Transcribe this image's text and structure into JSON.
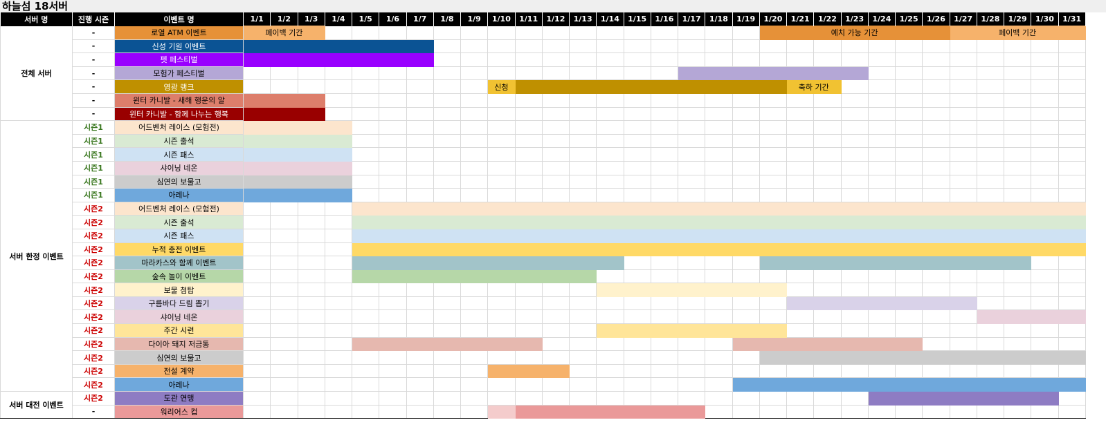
{
  "title": "하늘섬 18서버",
  "header": {
    "server": "서버 명",
    "season": "진행 시즌",
    "event": "이벤트 명"
  },
  "days": [
    "1/1",
    "1/2",
    "1/3",
    "1/4",
    "1/5",
    "1/6",
    "1/7",
    "1/8",
    "1/9",
    "1/10",
    "1/11",
    "1/12",
    "1/13",
    "1/14",
    "1/15",
    "1/16",
    "1/17",
    "1/18",
    "1/19",
    "1/20",
    "1/21",
    "1/22",
    "1/23",
    "1/24",
    "1/25",
    "1/26",
    "1/27",
    "1/28",
    "1/29",
    "1/30",
    "1/31"
  ],
  "season_colors": {
    "-": "#000000",
    "시즌1": "#38761d",
    "시즌2": "#cc0000"
  },
  "groups": [
    {
      "name": "전체 서버",
      "rows": [
        {
          "season": "-",
          "event": "로열 ATM 이벤트",
          "color": "#e69138",
          "text": "#000000",
          "segments": [
            {
              "start": 1,
              "end": 3,
              "color": "#f6b26b",
              "label": "페이백 기간"
            },
            {
              "start": 20,
              "end": 26,
              "color": "#e69138",
              "label": "예치 가능 기간"
            },
            {
              "start": 27,
              "end": 31,
              "color": "#f6b26b",
              "label": "페이백 기간"
            }
          ]
        },
        {
          "season": "-",
          "event": "신성 기원 이벤트",
          "color": "#0b5394",
          "text": "#ffffff",
          "segments": [
            {
              "start": 1,
              "end": 7,
              "color": "#0b5394"
            }
          ]
        },
        {
          "season": "-",
          "event": "펫 페스티벌",
          "color": "#9900ff",
          "text": "#ffffff",
          "segments": [
            {
              "start": 1,
              "end": 7,
              "color": "#9900ff"
            }
          ]
        },
        {
          "season": "-",
          "event": "모험가 페스티벌",
          "color": "#b4a7d6",
          "text": "#000000",
          "segments": [
            {
              "start": 17,
              "end": 23,
              "color": "#b4a7d6"
            }
          ]
        },
        {
          "season": "-",
          "event": "영광 랭크",
          "color": "#bf9000",
          "text": "#ffffff",
          "segments": [
            {
              "start": 10,
              "end": 10,
              "color": "#f1c232",
              "label": "신청"
            },
            {
              "start": 11,
              "end": 20,
              "color": "#bf9000"
            },
            {
              "start": 21,
              "end": 22,
              "color": "#f1c232",
              "label": "축하 기간"
            }
          ]
        },
        {
          "season": "-",
          "event": "윈터 카니발 - 새해 행운의 알",
          "color": "#dd7e6b",
          "text": "#000000",
          "segments": [
            {
              "start": 1,
              "end": 3,
              "color": "#dd7e6b"
            }
          ]
        },
        {
          "season": "-",
          "event": "윈터 카니발 - 함께 나누는 행복",
          "color": "#990000",
          "text": "#ffffff",
          "segments": [
            {
              "start": 1,
              "end": 3,
              "color": "#990000"
            }
          ]
        }
      ]
    },
    {
      "name": "서버 한정 이벤트",
      "rows": [
        {
          "season": "시즌1",
          "event": "어드벤처 레이스 (모험전)",
          "color": "#fce5cd",
          "text": "#000000",
          "segments": [
            {
              "start": 1,
              "end": 4,
              "color": "#fce5cd"
            }
          ]
        },
        {
          "season": "시즌1",
          "event": "시즌 출석",
          "color": "#d9ead3",
          "text": "#000000",
          "segments": [
            {
              "start": 1,
              "end": 4,
              "color": "#d9ead3"
            }
          ]
        },
        {
          "season": "시즌1",
          "event": "시즌 패스",
          "color": "#cfe2f3",
          "text": "#000000",
          "segments": [
            {
              "start": 1,
              "end": 4,
              "color": "#cfe2f3"
            }
          ]
        },
        {
          "season": "시즌1",
          "event": "샤이닝 네온",
          "color": "#ead1dc",
          "text": "#000000",
          "segments": [
            {
              "start": 1,
              "end": 4,
              "color": "#ead1dc"
            }
          ]
        },
        {
          "season": "시즌1",
          "event": "심연의 보물고",
          "color": "#cccccc",
          "text": "#000000",
          "segments": [
            {
              "start": 1,
              "end": 4,
              "color": "#cccccc"
            }
          ]
        },
        {
          "season": "시즌1",
          "event": "아레나",
          "color": "#6fa8dc",
          "text": "#000000",
          "segments": [
            {
              "start": 1,
              "end": 4,
              "color": "#6fa8dc"
            }
          ]
        },
        {
          "season": "시즌2",
          "event": "어드벤처 레이스 (모험전)",
          "color": "#fce5cd",
          "text": "#000000",
          "segments": [
            {
              "start": 5,
              "end": 31,
              "color": "#fce5cd"
            }
          ]
        },
        {
          "season": "시즌2",
          "event": "시즌 출석",
          "color": "#d9ead3",
          "text": "#000000",
          "segments": [
            {
              "start": 5,
              "end": 31,
              "color": "#d9ead3"
            }
          ]
        },
        {
          "season": "시즌2",
          "event": "시즌 패스",
          "color": "#cfe2f3",
          "text": "#000000",
          "segments": [
            {
              "start": 5,
              "end": 31,
              "color": "#cfe2f3"
            }
          ]
        },
        {
          "season": "시즌2",
          "event": "누적 충전 이벤트",
          "color": "#ffd966",
          "text": "#000000",
          "segments": [
            {
              "start": 5,
              "end": 31,
              "color": "#ffd966"
            }
          ]
        },
        {
          "season": "시즌2",
          "event": "마라카스와 함께 이벤트",
          "color": "#a2c4c9",
          "text": "#000000",
          "segments": [
            {
              "start": 5,
              "end": 14,
              "color": "#a2c4c9"
            },
            {
              "start": 20,
              "end": 29,
              "color": "#a2c4c9"
            }
          ]
        },
        {
          "season": "시즌2",
          "event": "숲속 놀이 이벤트",
          "color": "#b6d7a8",
          "text": "#000000",
          "segments": [
            {
              "start": 5,
              "end": 13,
              "color": "#b6d7a8"
            }
          ]
        },
        {
          "season": "시즌2",
          "event": "보물 첨탑",
          "color": "#fff2cc",
          "text": "#000000",
          "segments": [
            {
              "start": 14,
              "end": 20,
              "color": "#fff2cc"
            }
          ]
        },
        {
          "season": "시즌2",
          "event": "구름바다 드림 뽑기",
          "color": "#d9d2e9",
          "text": "#000000",
          "segments": [
            {
              "start": 21,
              "end": 27,
              "color": "#d9d2e9"
            }
          ]
        },
        {
          "season": "시즌2",
          "event": "샤이닝 네온",
          "color": "#ead1dc",
          "text": "#000000",
          "segments": [
            {
              "start": 28,
              "end": 31,
              "color": "#ead1dc"
            }
          ]
        },
        {
          "season": "시즌2",
          "event": "주간 시련",
          "color": "#ffe599",
          "text": "#000000",
          "segments": [
            {
              "start": 14,
              "end": 20,
              "color": "#ffe599"
            }
          ]
        },
        {
          "season": "시즌2",
          "event": "다이아 돼지 저금통",
          "color": "#e6b8af",
          "text": "#000000",
          "segments": [
            {
              "start": 5,
              "end": 11,
              "color": "#e6b8af"
            },
            {
              "start": 19,
              "end": 25,
              "color": "#e6b8af"
            }
          ]
        },
        {
          "season": "시즌2",
          "event": "심연의 보물고",
          "color": "#cccccc",
          "text": "#000000",
          "segments": [
            {
              "start": 20,
              "end": 31,
              "color": "#cccccc"
            }
          ]
        },
        {
          "season": "시즌2",
          "event": "전설 계약",
          "color": "#f6b26b",
          "text": "#000000",
          "segments": [
            {
              "start": 10,
              "end": 12,
              "color": "#f6b26b"
            }
          ]
        },
        {
          "season": "시즌2",
          "event": "아레나",
          "color": "#6fa8dc",
          "text": "#000000",
          "segments": [
            {
              "start": 19,
              "end": 31,
              "color": "#6fa8dc"
            }
          ]
        }
      ]
    },
    {
      "name": "서버 대전 이벤트",
      "rows": [
        {
          "season": "시즌2",
          "event": "도관 연맹",
          "color": "#8e7cc3",
          "text": "#000000",
          "segments": [
            {
              "start": 24,
              "end": 30,
              "color": "#8e7cc3"
            }
          ]
        },
        {
          "season": "-",
          "event": "워리어스 컵",
          "color": "#ea9999",
          "text": "#000000",
          "segments": [
            {
              "start": 10,
              "end": 10,
              "color": "#f4cccc"
            },
            {
              "start": 11,
              "end": 17,
              "color": "#ea9999"
            }
          ]
        }
      ]
    }
  ]
}
